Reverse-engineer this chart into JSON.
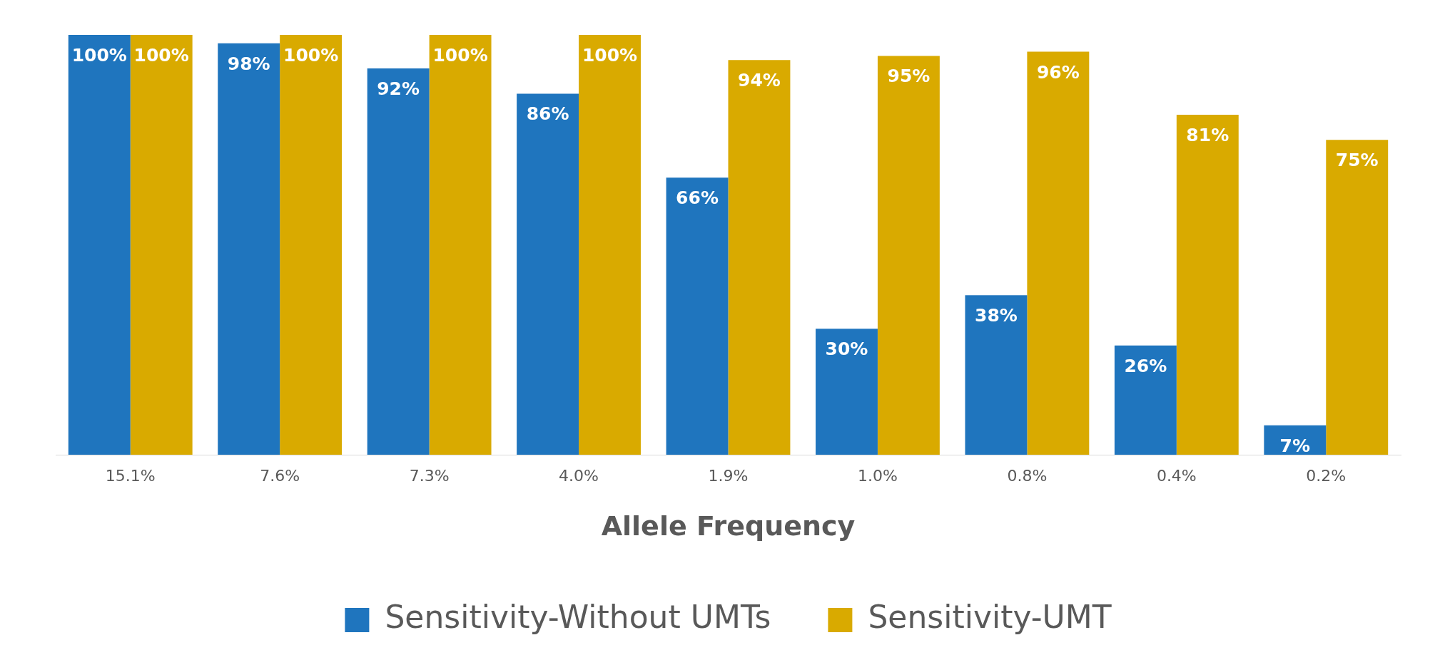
{
  "chart_data": {
    "type": "bar",
    "xlabel": "Allele Frequency",
    "categories": [
      "15.1%",
      "7.6%",
      "7.3%",
      "4.0%",
      "1.9%",
      "1.0%",
      "0.8%",
      "0.4%",
      "0.2%"
    ],
    "series": [
      {
        "name": "Sensitivity-Without UMTs",
        "color": "#1f75be",
        "values": [
          100,
          98,
          92,
          86,
          66,
          30,
          38,
          26,
          7
        ],
        "value_labels": [
          "100%",
          "98%",
          "92%",
          "86%",
          "66%",
          "30%",
          "38%",
          "26%",
          "7%"
        ]
      },
      {
        "name": "Sensitivity-UMT",
        "color": "#d9aa00",
        "values": [
          100,
          100,
          100,
          100,
          94,
          95,
          96,
          81,
          75
        ],
        "value_labels": [
          "100%",
          "100%",
          "100%",
          "100%",
          "94%",
          "95%",
          "96%",
          "81%",
          "75%"
        ]
      }
    ],
    "ylim": [
      0,
      100
    ],
    "tick_labels": "x",
    "grid": false,
    "legend": "bottom"
  }
}
